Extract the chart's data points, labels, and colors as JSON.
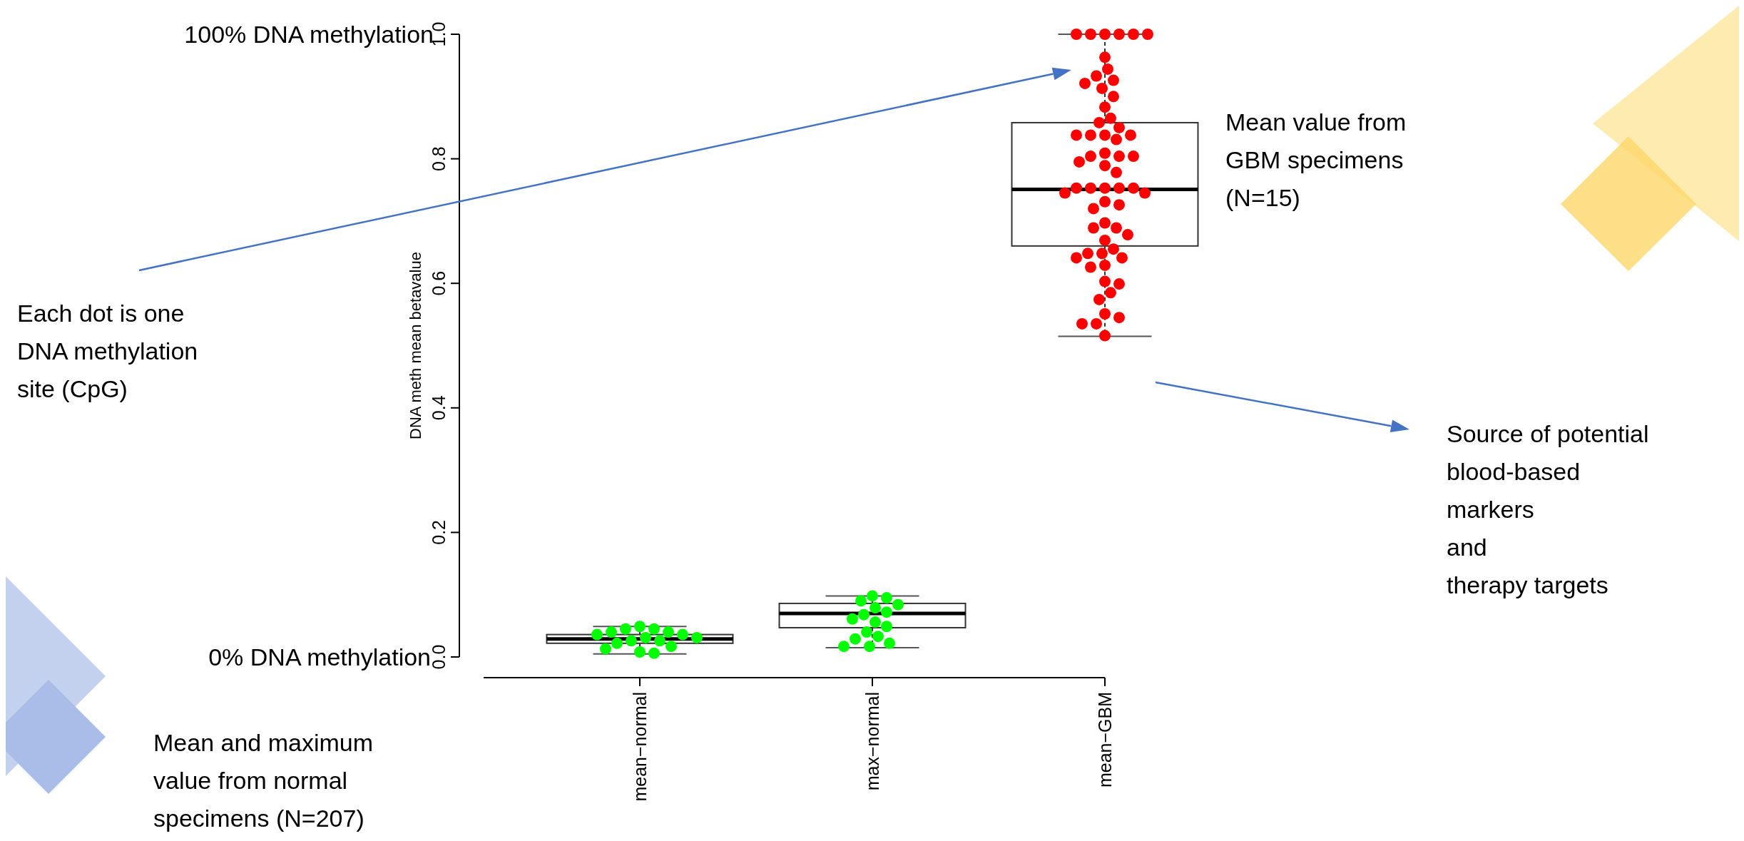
{
  "chart_data": {
    "type": "box",
    "ylabel": "DNA meth mean betavalue",
    "categories": [
      "mean−normal",
      "max−normal",
      "mean−GBM"
    ],
    "ylim": [
      0,
      1
    ],
    "yticks": [
      {
        "value": 0,
        "label": "0.0"
      },
      0.2,
      0.4,
      0.6,
      0.8,
      {
        "value": 1,
        "label": "1.0"
      }
    ],
    "boxes": [
      {
        "low": 0.005,
        "q1": 0.022,
        "median": 0.029,
        "q3": 0.036,
        "high": 0.049
      },
      {
        "low": 0.015,
        "q1": 0.047,
        "median": 0.07,
        "q3": 0.086,
        "high": 0.098
      },
      {
        "low": 0.515,
        "q1": 0.66,
        "median": 0.751,
        "q3": 0.858,
        "high": 1.0
      }
    ],
    "series": [
      {
        "type": "scatter",
        "color": "#00ff00",
        "x": [
          "mean−normal",
          "mean−normal",
          "mean−normal",
          "mean−normal",
          "mean−normal",
          "mean−normal",
          "mean−normal",
          "mean−normal",
          "mean−normal",
          "mean−normal",
          "mean−normal",
          "mean−normal",
          "mean−normal",
          "mean−normal",
          "mean−normal",
          "mean−normal"
        ],
        "values": [
          0.049,
          0.045,
          0.045,
          0.04,
          0.04,
          0.036,
          0.036,
          0.031,
          0.031,
          0.026,
          0.026,
          0.022,
          0.017,
          0.013,
          0.008,
          0.006
        ]
      },
      {
        "type": "scatter",
        "color": "#00ff00",
        "x": [
          "max−normal",
          "max−normal",
          "max−normal",
          "max−normal",
          "max−normal",
          "max−normal",
          "max−normal",
          "max−normal",
          "max−normal",
          "max−normal",
          "max−normal",
          "max−normal",
          "max−normal",
          "max−normal",
          "max−normal",
          "max−normal"
        ],
        "values": [
          0.098,
          0.095,
          0.09,
          0.084,
          0.079,
          0.072,
          0.068,
          0.061,
          0.056,
          0.049,
          0.04,
          0.033,
          0.029,
          0.022,
          0.017,
          0.017
        ]
      },
      {
        "type": "scatter",
        "color": "#ff0000",
        "x": [
          "mean−GBM",
          "mean−GBM",
          "mean−GBM",
          "mean−GBM",
          "mean−GBM",
          "mean−GBM",
          "mean−GBM",
          "mean−GBM",
          "mean−GBM",
          "mean−GBM",
          "mean−GBM",
          "mean−GBM",
          "mean−GBM",
          "mean−GBM",
          "mean−GBM",
          "mean−GBM",
          "mean−GBM",
          "mean−GBM",
          "mean−GBM",
          "mean−GBM",
          "mean−GBM",
          "mean−GBM",
          "mean−GBM",
          "mean−GBM",
          "mean−GBM",
          "mean−GBM",
          "mean−GBM",
          "mean−GBM",
          "mean−GBM",
          "mean−GBM",
          "mean−GBM",
          "mean−GBM",
          "mean−GBM",
          "mean−GBM",
          "mean−GBM",
          "mean−GBM",
          "mean−GBM",
          "mean−GBM",
          "mean−GBM",
          "mean−GBM",
          "mean−GBM",
          "mean−GBM",
          "mean−GBM",
          "mean−GBM",
          "mean−GBM",
          "mean−GBM",
          "mean−GBM",
          "mean−GBM",
          "mean−GBM",
          "mean−GBM",
          "mean−GBM",
          "mean−GBM",
          "mean−GBM",
          "mean−GBM",
          "mean−GBM",
          "mean−GBM",
          "mean−GBM",
          "mean−GBM",
          "mean−GBM",
          "mean−GBM"
        ],
        "values": [
          1,
          1,
          1,
          1,
          1,
          1,
          0.963,
          0.944,
          0.933,
          0.926,
          0.921,
          0.913,
          0.9,
          0.883,
          0.865,
          0.858,
          0.85,
          0.838,
          0.838,
          0.838,
          0.838,
          0.831,
          0.809,
          0.804,
          0.804,
          0.804,
          0.795,
          0.789,
          0.778,
          0.753,
          0.753,
          0.753,
          0.753,
          0.753,
          0.745,
          0.745,
          0.731,
          0.726,
          0.72,
          0.697,
          0.689,
          0.689,
          0.678,
          0.669,
          0.655,
          0.648,
          0.648,
          0.641,
          0.641,
          0.629,
          0.626,
          0.603,
          0.599,
          0.585,
          0.574,
          0.551,
          0.545,
          0.535,
          0.535,
          0.516
        ]
      }
    ],
    "annotations": [
      "100% DNA methylation",
      "0% DNA methylation",
      "Each dot is one\nDNA methylation\nsite (CpG)",
      "Mean value from\nGBM specimens\n(N=15)",
      "Source of potential\nblood-based\nmarkers\nand\ntherapy targets",
      "Mean and maximum\nvalue from normal\nspecimens (N=207)"
    ]
  }
}
